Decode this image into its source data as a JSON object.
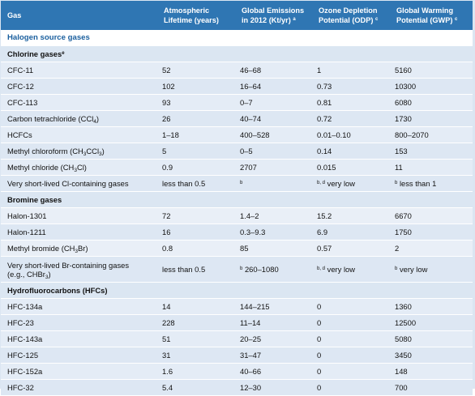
{
  "headers": {
    "gas": "Gas",
    "lifetime_1": "Atmospheric",
    "lifetime_2": "Lifetime (years)",
    "emissions_1": "Global Emissions",
    "emissions_2": "in 2012 (Kt/yr)",
    "emissions_sup": "a",
    "odp_1": "Ozone Depletion",
    "odp_2": "Potential (ODP)",
    "odp_sup": "c",
    "gwp_1": "Global Warming",
    "gwp_2": "Potential (GWP)",
    "gwp_sup": "c"
  },
  "section_halogen": "Halogen source gases",
  "chlorine": {
    "title": "Chlorine gases",
    "title_sup": "e",
    "rows": [
      {
        "gas": "CFC-11",
        "lifetime": "52",
        "emissions": "46–68",
        "odp": "1",
        "gwp": "5160"
      },
      {
        "gas": "CFC-12",
        "lifetime": "102",
        "emissions": "16–64",
        "odp": "0.73",
        "gwp": "10300"
      },
      {
        "gas": "CFC-113",
        "lifetime": "93",
        "emissions": "0–7",
        "odp": "0.81",
        "gwp": "6080"
      },
      {
        "gas_pre": "Carbon tetrachloride (CCl",
        "gas_sub": "4",
        "gas_post": ")",
        "lifetime": "26",
        "emissions": "40–74",
        "odp": "0.72",
        "gwp": "1730"
      },
      {
        "gas": "HCFCs",
        "lifetime": "1–18",
        "emissions": "400–528",
        "odp": "0.01–0.10",
        "gwp": "800–2070"
      },
      {
        "gas_pre": "Methyl chloroform (CH",
        "gas_sub": "3",
        "gas_post": "CCl",
        "gas_sub2": "3",
        "gas_post2": ")",
        "lifetime": "5",
        "emissions": "0–5",
        "odp": "0.14",
        "gwp": "153"
      },
      {
        "gas_pre": "Methyl chloride (CH",
        "gas_sub": "3",
        "gas_post": "Cl)",
        "lifetime": "0.9",
        "emissions": "2707",
        "odp": "0.015",
        "gwp": "11"
      },
      {
        "gas": "Very short-lived Cl-containing gases",
        "lifetime": "less than 0.5",
        "emissions_sup": "b",
        "odp_sup": "b, d",
        "odp": "very low",
        "gwp_sup": "b",
        "gwp": "less than 1"
      }
    ]
  },
  "bromine": {
    "title": "Bromine gases",
    "rows": [
      {
        "gas": "Halon-1301",
        "lifetime": "72",
        "emissions": "1.4–2",
        "odp": "15.2",
        "gwp": "6670"
      },
      {
        "gas": "Halon-1211",
        "lifetime": "16",
        "emissions": "0.3–9.3",
        "odp": "6.9",
        "gwp": "1750"
      },
      {
        "gas_pre": "Methyl bromide (CH",
        "gas_sub": "3",
        "gas_post": "Br)",
        "lifetime": "0.8",
        "emissions": "85",
        "odp": "0.57",
        "gwp": "2"
      },
      {
        "gas_line1": "Very short-lived Br-containing gases",
        "gas_line2_pre": "(e.g., CHBr",
        "gas_line2_sub": "3",
        "gas_line2_post": ")",
        "lifetime": "less than 0.5",
        "emissions_sup": "b",
        "emissions": "260–1080",
        "odp_sup": "b, d",
        "odp": "very low",
        "gwp_sup": "b",
        "gwp": "very low"
      }
    ]
  },
  "hfc": {
    "title": "Hydrofluorocarbons (HFCs)",
    "rows": [
      {
        "gas": "HFC-134a",
        "lifetime": "14",
        "emissions": "144–215",
        "odp": "0",
        "gwp": "1360"
      },
      {
        "gas": "HFC-23",
        "lifetime": "228",
        "emissions": "11–14",
        "odp": "0",
        "gwp": "12500"
      },
      {
        "gas": "HFC-143a",
        "lifetime": "51",
        "emissions": "20–25",
        "odp": "0",
        "gwp": "5080"
      },
      {
        "gas": "HFC-125",
        "lifetime": "31",
        "emissions": "31–47",
        "odp": "0",
        "gwp": "3450"
      },
      {
        "gas": "HFC-152a",
        "lifetime": "1.6",
        "emissions": "40–66",
        "odp": "0",
        "gwp": "148"
      },
      {
        "gas": "HFC-32",
        "lifetime": "5.4",
        "emissions": "12–30",
        "odp": "0",
        "gwp": "700"
      }
    ]
  }
}
